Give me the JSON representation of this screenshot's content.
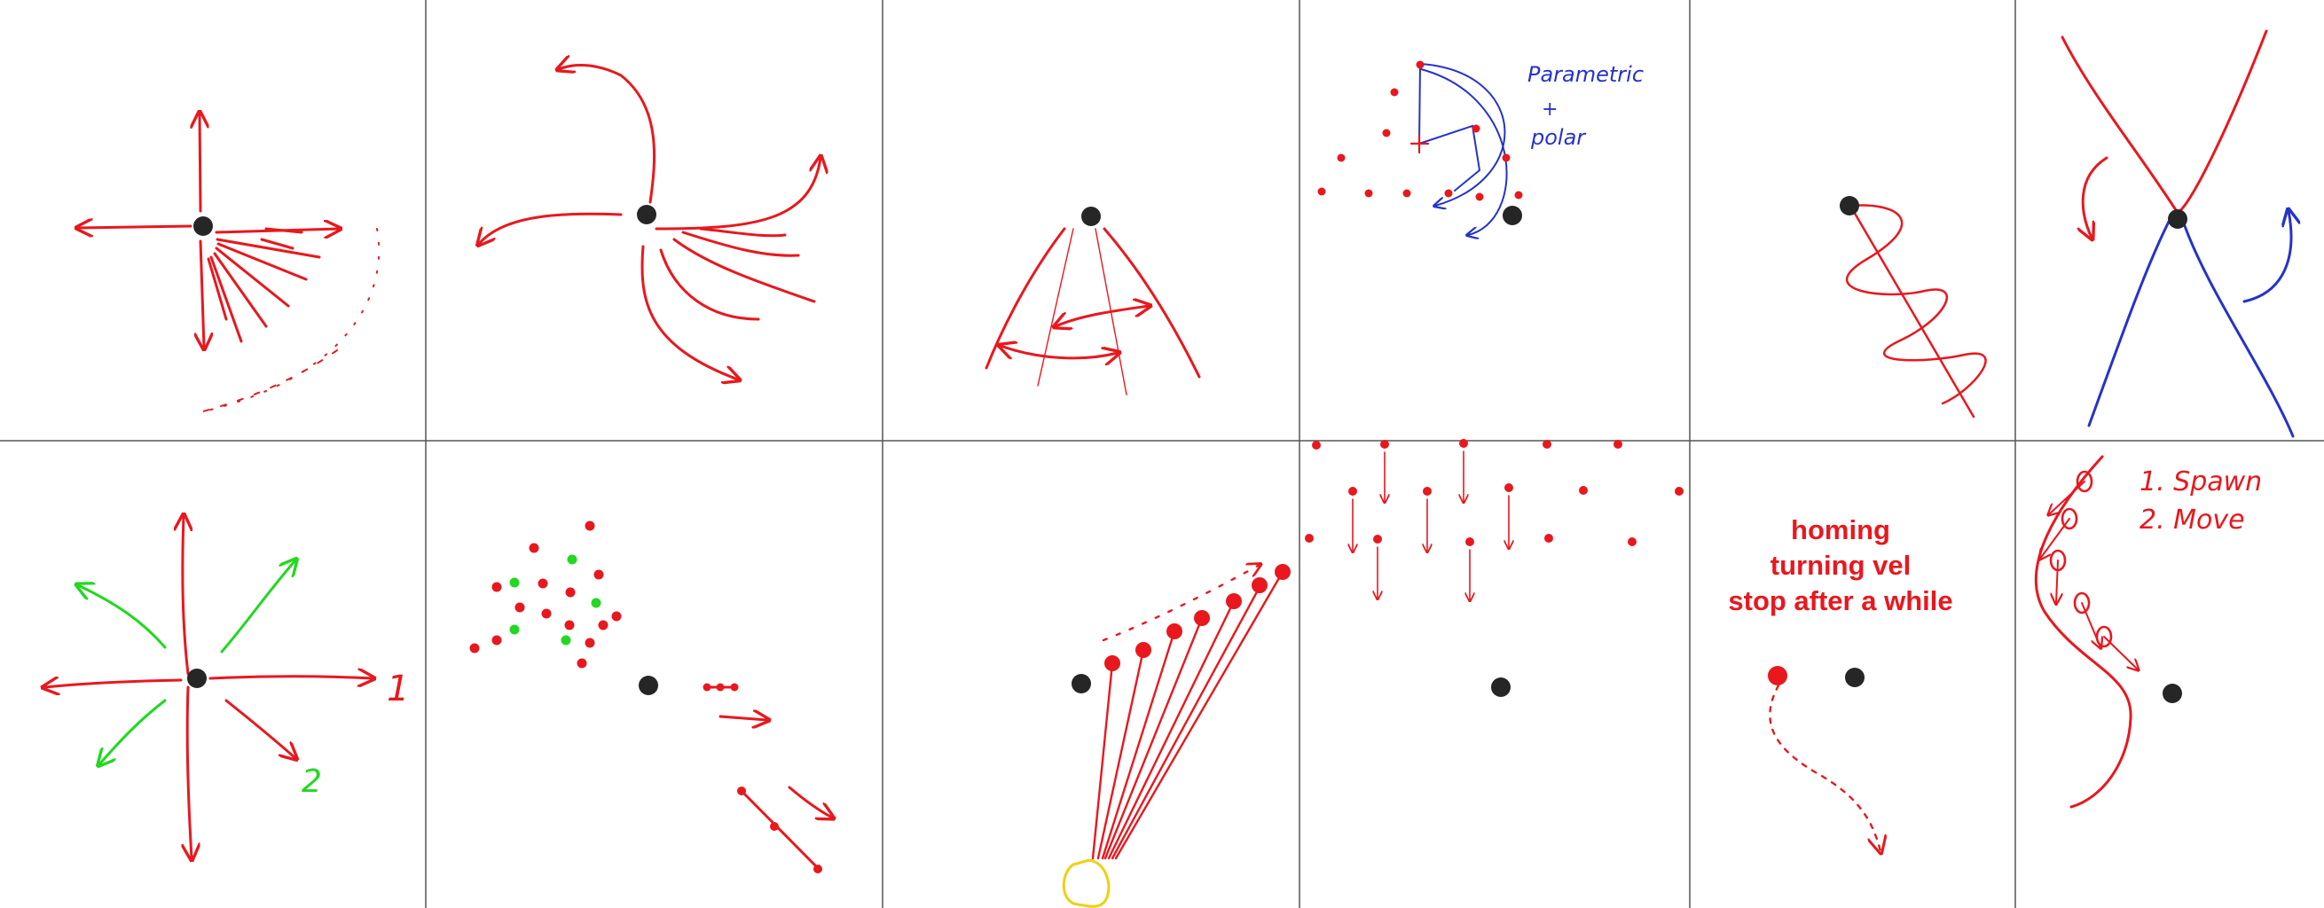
{
  "colors": {
    "background": "#ffffff",
    "grid": "#555555",
    "primary": "#e8181e",
    "secondary": "#2e9cf2",
    "blue_ink": "#2633c8",
    "green_ink": "#22d820",
    "emitter": "#262626",
    "bulb": "#f0d010"
  },
  "annotations": {
    "parametric_label": "Parametric",
    "plus_sign": "+",
    "polar_label": "polar",
    "homing_label": "homing",
    "turning_label": "turning vel",
    "stop_label": "stop after a while",
    "step_one_number": "1",
    "step_two_number": "2",
    "spawn_label": "1. Spawn",
    "move_label": "2. Move"
  }
}
